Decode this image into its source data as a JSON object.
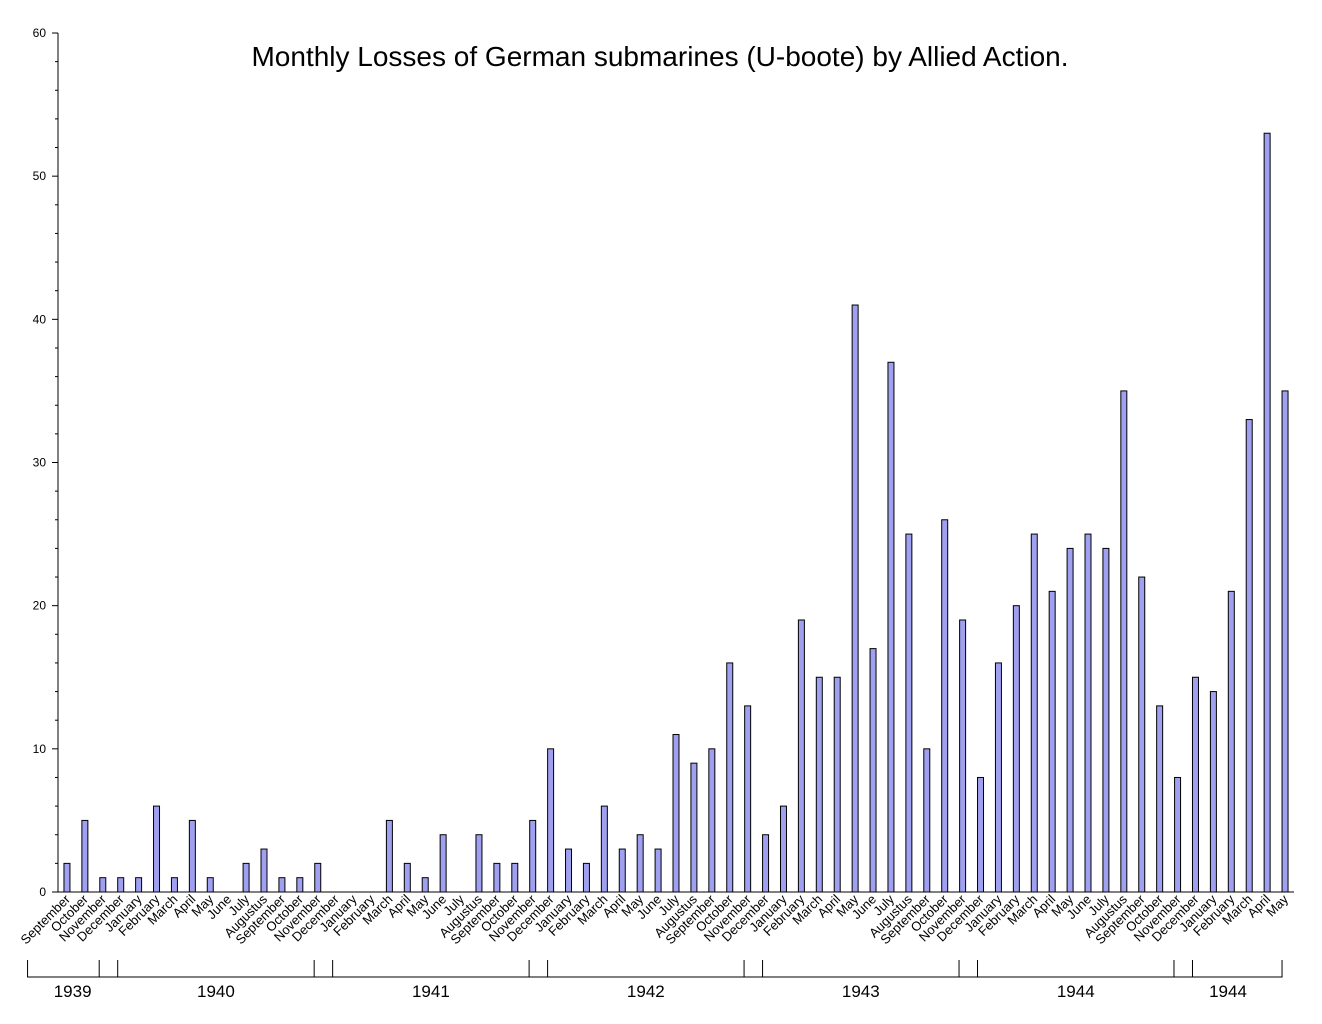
{
  "chart_data": {
    "type": "bar",
    "title": "Monthly Losses of German submarines (U-boote) by Allied Action.",
    "xlabel": "",
    "ylabel": "",
    "ylim": [
      0,
      60
    ],
    "yticks": [
      "0",
      "10",
      "20",
      "30",
      "40",
      "50",
      "60"
    ],
    "grid": false,
    "categories": [
      "September",
      "October",
      "November",
      "December",
      "January",
      "February",
      "March",
      "April",
      "May",
      "June",
      "July",
      "Augustus",
      "September",
      "October",
      "November",
      "December",
      "January",
      "February",
      "March",
      "April",
      "May",
      "June",
      "July",
      "Augustus",
      "September",
      "October",
      "November",
      "December",
      "January",
      "February",
      "March",
      "April",
      "May",
      "June",
      "July",
      "Augustus",
      "September",
      "October",
      "November",
      "December",
      "January",
      "February",
      "March",
      "April",
      "May",
      "June",
      "July",
      "Augustus",
      "September",
      "October",
      "November",
      "December",
      "January",
      "February",
      "March",
      "April",
      "May",
      "June",
      "July",
      "Augustus",
      "September",
      "October",
      "November",
      "December",
      "January",
      "February",
      "March",
      "April",
      "May"
    ],
    "values": [
      2,
      5,
      1,
      1,
      1,
      6,
      1,
      5,
      1,
      0,
      2,
      3,
      1,
      1,
      2,
      0,
      0,
      0,
      5,
      2,
      1,
      4,
      0,
      4,
      2,
      2,
      5,
      10,
      3,
      2,
      6,
      3,
      4,
      3,
      11,
      9,
      10,
      16,
      13,
      4,
      6,
      19,
      15,
      15,
      41,
      17,
      37,
      25,
      10,
      26,
      19,
      8,
      16,
      20,
      25,
      21,
      24,
      25,
      24,
      35,
      22,
      13,
      8,
      15,
      14,
      21,
      33,
      53,
      35
    ],
    "year_groups": [
      {
        "label": "1939",
        "start": 0,
        "end": 3
      },
      {
        "label": "1940",
        "start": 4,
        "end": 15
      },
      {
        "label": "1941",
        "start": 16,
        "end": 27
      },
      {
        "label": "1942",
        "start": 28,
        "end": 39
      },
      {
        "label": "1943",
        "start": 40,
        "end": 51
      },
      {
        "label": "1944",
        "start": 52,
        "end": 63
      },
      {
        "label": "1944",
        "start": 64,
        "end": 68
      }
    ]
  }
}
